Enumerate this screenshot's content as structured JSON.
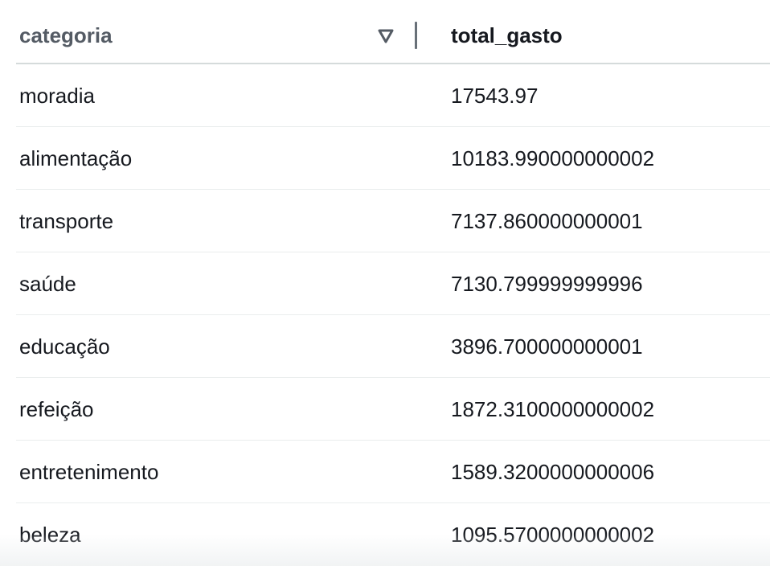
{
  "table": {
    "columns": [
      {
        "label": "categoria"
      },
      {
        "label": "total_gasto"
      }
    ],
    "sort_icon": "sort-descending-triangle-icon",
    "rows": [
      {
        "categoria": "moradia",
        "total_gasto": "17543.97"
      },
      {
        "categoria": "alimentação",
        "total_gasto": "10183.990000000002"
      },
      {
        "categoria": "transporte",
        "total_gasto": "7137.860000000001"
      },
      {
        "categoria": "saúde",
        "total_gasto": "7130.799999999996"
      },
      {
        "categoria": "educação",
        "total_gasto": "3896.700000000001"
      },
      {
        "categoria": "refeição",
        "total_gasto": "1872.3100000000002"
      },
      {
        "categoria": "entretenimento",
        "total_gasto": "1589.3200000000006"
      },
      {
        "categoria": "beleza",
        "total_gasto": "1095.5700000000002"
      }
    ]
  }
}
